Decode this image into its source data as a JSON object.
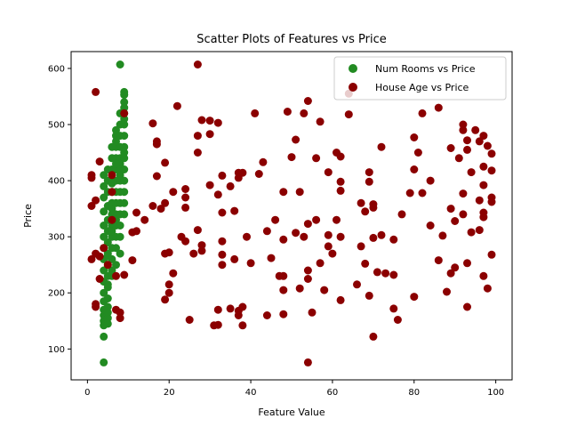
{
  "chart_data": {
    "type": "scatter",
    "title": "Scatter Plots of Features vs Price",
    "xlabel": "Feature Value",
    "ylabel": "Price",
    "xlim": [
      -4,
      104
    ],
    "ylim": [
      45,
      630
    ],
    "xticks": [
      0,
      20,
      40,
      60,
      80,
      100
    ],
    "yticks": [
      100,
      200,
      300,
      400,
      500,
      600
    ],
    "grid": false,
    "legend_position": "top-right",
    "series": [
      {
        "name": "Num Rooms vs Price",
        "color": "#228b22",
        "points": [
          [
            4,
            76
          ],
          [
            4,
            122
          ],
          [
            4,
            142
          ],
          [
            4,
            150
          ],
          [
            4,
            160
          ],
          [
            5,
            145
          ],
          [
            5,
            155
          ],
          [
            4,
            170
          ],
          [
            5,
            175
          ],
          [
            4,
            185
          ],
          [
            5,
            190
          ],
          [
            4,
            200
          ],
          [
            5,
            210
          ],
          [
            4,
            220
          ],
          [
            5,
            230
          ],
          [
            4,
            240
          ],
          [
            5,
            250
          ],
          [
            4,
            260
          ],
          [
            5,
            270
          ],
          [
            4,
            280
          ],
          [
            5,
            290
          ],
          [
            4,
            300
          ],
          [
            5,
            310
          ],
          [
            4,
            320
          ],
          [
            5,
            330
          ],
          [
            4,
            345
          ],
          [
            5,
            355
          ],
          [
            4,
            370
          ],
          [
            5,
            380
          ],
          [
            4,
            390
          ],
          [
            5,
            400
          ],
          [
            4,
            410
          ],
          [
            5,
            420
          ],
          [
            6,
            240
          ],
          [
            6,
            260
          ],
          [
            6,
            280
          ],
          [
            6,
            300
          ],
          [
            6,
            320
          ],
          [
            6,
            340
          ],
          [
            6,
            360
          ],
          [
            6,
            380
          ],
          [
            6,
            400
          ],
          [
            6,
            420
          ],
          [
            6,
            440
          ],
          [
            6,
            460
          ],
          [
            7,
            250
          ],
          [
            7,
            280
          ],
          [
            7,
            300
          ],
          [
            7,
            320
          ],
          [
            7,
            340
          ],
          [
            7,
            360
          ],
          [
            7,
            380
          ],
          [
            7,
            400
          ],
          [
            7,
            420
          ],
          [
            7,
            440
          ],
          [
            7,
            460
          ],
          [
            7,
            480
          ],
          [
            7,
            490
          ],
          [
            8,
            270
          ],
          [
            8,
            300
          ],
          [
            8,
            320
          ],
          [
            8,
            340
          ],
          [
            8,
            360
          ],
          [
            8,
            380
          ],
          [
            8,
            400
          ],
          [
            8,
            420
          ],
          [
            8,
            440
          ],
          [
            8,
            460
          ],
          [
            8,
            480
          ],
          [
            8,
            500
          ],
          [
            8,
            520
          ],
          [
            8,
            607
          ],
          [
            9,
            340
          ],
          [
            9,
            360
          ],
          [
            9,
            380
          ],
          [
            9,
            400
          ],
          [
            9,
            420
          ],
          [
            9,
            440
          ],
          [
            9,
            460
          ],
          [
            9,
            480
          ],
          [
            9,
            500
          ],
          [
            9,
            510
          ],
          [
            9,
            520
          ],
          [
            9,
            530
          ],
          [
            9,
            540
          ],
          [
            9,
            553
          ],
          [
            9,
            558
          ],
          [
            5,
            165
          ],
          [
            6,
            230
          ],
          [
            5,
            215
          ],
          [
            6,
            310
          ],
          [
            7,
            330
          ],
          [
            8,
            410
          ],
          [
            9,
            450
          ],
          [
            6,
            350
          ],
          [
            7,
            470
          ],
          [
            8,
            430
          ],
          [
            5,
            265
          ],
          [
            6,
            395
          ],
          [
            7,
            430
          ]
        ]
      },
      {
        "name": "House Age vs Price",
        "color": "#8b0000",
        "points": [
          [
            1,
            260
          ],
          [
            1,
            355
          ],
          [
            1,
            405
          ],
          [
            1,
            410
          ],
          [
            2,
            558
          ],
          [
            2,
            365
          ],
          [
            2,
            270
          ],
          [
            2,
            180
          ],
          [
            2,
            175
          ],
          [
            3,
            265
          ],
          [
            3,
            434
          ],
          [
            3,
            225
          ],
          [
            4,
            280
          ],
          [
            5,
            250
          ],
          [
            6,
            410
          ],
          [
            6,
            380
          ],
          [
            6,
            330
          ],
          [
            7,
            170
          ],
          [
            7,
            230
          ],
          [
            8,
            165
          ],
          [
            8,
            155
          ],
          [
            9,
            520
          ],
          [
            9,
            232
          ],
          [
            11,
            308
          ],
          [
            11,
            258
          ],
          [
            12,
            343
          ],
          [
            12,
            310
          ],
          [
            14,
            330
          ],
          [
            16,
            502
          ],
          [
            16,
            355
          ],
          [
            17,
            470
          ],
          [
            17,
            465
          ],
          [
            17,
            408
          ],
          [
            18,
            350
          ],
          [
            19,
            432
          ],
          [
            19,
            360
          ],
          [
            19,
            270
          ],
          [
            19,
            188
          ],
          [
            20,
            272
          ],
          [
            20,
            215
          ],
          [
            20,
            200
          ],
          [
            21,
            380
          ],
          [
            21,
            235
          ],
          [
            22,
            533
          ],
          [
            23,
            300
          ],
          [
            24,
            385
          ],
          [
            24,
            370
          ],
          [
            24,
            352
          ],
          [
            24,
            292
          ],
          [
            25,
            152
          ],
          [
            26,
            270
          ],
          [
            27,
            607
          ],
          [
            27,
            480
          ],
          [
            27,
            450
          ],
          [
            27,
            312
          ],
          [
            28,
            285
          ],
          [
            28,
            275
          ],
          [
            28,
            508
          ],
          [
            30,
            507
          ],
          [
            30,
            483
          ],
          [
            30,
            392
          ],
          [
            31,
            142
          ],
          [
            32,
            143
          ],
          [
            32,
            170
          ],
          [
            32,
            503
          ],
          [
            32,
            375
          ],
          [
            33,
            409
          ],
          [
            33,
            343
          ],
          [
            33,
            292
          ],
          [
            33,
            268
          ],
          [
            33,
            250
          ],
          [
            35,
            172
          ],
          [
            35,
            390
          ],
          [
            36,
            346
          ],
          [
            36,
            260
          ],
          [
            37,
            414
          ],
          [
            37,
            405
          ],
          [
            37,
            168
          ],
          [
            37,
            160
          ],
          [
            38,
            175
          ],
          [
            38,
            142
          ],
          [
            38,
            414
          ],
          [
            39,
            300
          ],
          [
            40,
            253
          ],
          [
            41,
            520
          ],
          [
            42,
            412
          ],
          [
            43,
            433
          ],
          [
            44,
            310
          ],
          [
            44,
            160
          ],
          [
            45,
            262
          ],
          [
            46,
            330
          ],
          [
            47,
            230
          ],
          [
            48,
            380
          ],
          [
            48,
            295
          ],
          [
            48,
            230
          ],
          [
            48,
            205
          ],
          [
            48,
            162
          ],
          [
            49,
            523
          ],
          [
            50,
            442
          ],
          [
            51,
            473
          ],
          [
            51,
            307
          ],
          [
            52,
            380
          ],
          [
            52,
            208
          ],
          [
            53,
            520
          ],
          [
            53,
            300
          ],
          [
            54,
            542
          ],
          [
            54,
            323
          ],
          [
            54,
            240
          ],
          [
            54,
            225
          ],
          [
            54,
            76
          ],
          [
            55,
            165
          ],
          [
            56,
            440
          ],
          [
            56,
            330
          ],
          [
            57,
            253
          ],
          [
            57,
            505
          ],
          [
            58,
            205
          ],
          [
            59,
            415
          ],
          [
            59,
            303
          ],
          [
            59,
            283
          ],
          [
            60,
            270
          ],
          [
            61,
            450
          ],
          [
            61,
            330
          ],
          [
            62,
            443
          ],
          [
            62,
            398
          ],
          [
            62,
            382
          ],
          [
            62,
            300
          ],
          [
            62,
            187
          ],
          [
            64,
            555
          ],
          [
            64,
            518
          ],
          [
            66,
            215
          ],
          [
            67,
            360
          ],
          [
            67,
            283
          ],
          [
            68,
            345
          ],
          [
            68,
            252
          ],
          [
            69,
            415
          ],
          [
            69,
            398
          ],
          [
            69,
            195
          ],
          [
            70,
            358
          ],
          [
            70,
            298
          ],
          [
            70,
            352
          ],
          [
            70,
            122
          ],
          [
            71,
            237
          ],
          [
            72,
            460
          ],
          [
            72,
            303
          ],
          [
            73,
            235
          ],
          [
            75,
            295
          ],
          [
            75,
            232
          ],
          [
            75,
            172
          ],
          [
            76,
            152
          ],
          [
            77,
            340
          ],
          [
            79,
            378
          ],
          [
            80,
            477
          ],
          [
            80,
            420
          ],
          [
            80,
            193
          ],
          [
            81,
            450
          ],
          [
            82,
            520
          ],
          [
            82,
            378
          ],
          [
            84,
            400
          ],
          [
            84,
            320
          ],
          [
            86,
            530
          ],
          [
            86,
            258
          ],
          [
            87,
            302
          ],
          [
            88,
            202
          ],
          [
            89,
            458
          ],
          [
            89,
            350
          ],
          [
            89,
            235
          ],
          [
            90,
            245
          ],
          [
            90,
            328
          ],
          [
            91,
            440
          ],
          [
            92,
            500
          ],
          [
            92,
            490
          ],
          [
            92,
            377
          ],
          [
            92,
            340
          ],
          [
            93,
            472
          ],
          [
            93,
            455
          ],
          [
            93,
            253
          ],
          [
            93,
            175
          ],
          [
            94,
            308
          ],
          [
            94,
            415
          ],
          [
            95,
            490
          ],
          [
            96,
            470
          ],
          [
            96,
            365
          ],
          [
            96,
            312
          ],
          [
            97,
            480
          ],
          [
            97,
            425
          ],
          [
            97,
            392
          ],
          [
            97,
            343
          ],
          [
            97,
            335
          ],
          [
            97,
            230
          ],
          [
            98,
            462
          ],
          [
            98,
            208
          ],
          [
            99,
            448
          ],
          [
            99,
            418
          ],
          [
            99,
            370
          ],
          [
            99,
            362
          ],
          [
            99,
            268
          ]
        ]
      }
    ]
  }
}
